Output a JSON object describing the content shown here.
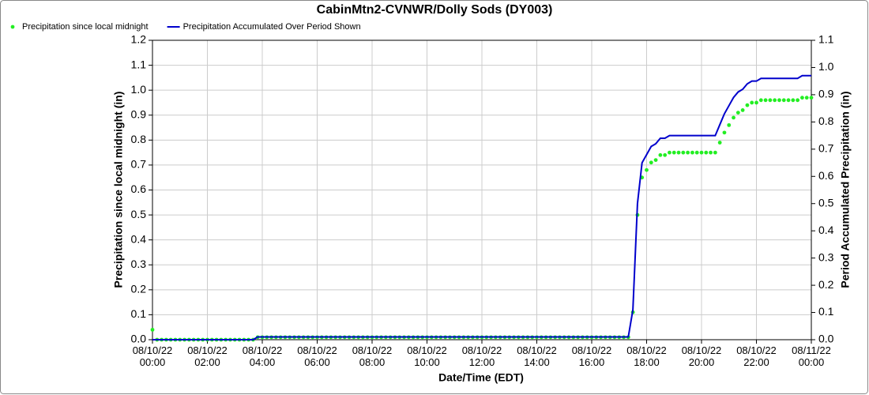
{
  "chart_data": {
    "type": "line",
    "title": "CabinMtn2-CVNWR/Dolly Sods (DY003)",
    "x_label": "Date/Time (EDT)",
    "y_label": "Precipitation since local midnight (in)",
    "y2_label": "Period Accumulated Precipitation (in)",
    "grid": true,
    "legend": "top-left",
    "xlim": [
      0,
      1440
    ],
    "xticks": [
      {
        "value": 0,
        "label": "08/10/22\n00:00"
      },
      {
        "value": 120,
        "label": "08/10/22\n02:00"
      },
      {
        "value": 240,
        "label": "08/10/22\n04:00"
      },
      {
        "value": 360,
        "label": "08/10/22\n06:00"
      },
      {
        "value": 480,
        "label": "08/10/22\n08:00"
      },
      {
        "value": 600,
        "label": "08/10/22\n10:00"
      },
      {
        "value": 720,
        "label": "08/10/22\n12:00"
      },
      {
        "value": 840,
        "label": "08/10/22\n14:00"
      },
      {
        "value": 960,
        "label": "08/10/22\n16:00"
      },
      {
        "value": 1080,
        "label": "08/10/22\n18:00"
      },
      {
        "value": 1200,
        "label": "08/10/22\n20:00"
      },
      {
        "value": 1320,
        "label": "08/10/22\n22:00"
      },
      {
        "value": 1440,
        "label": "08/11/22\n00:00"
      }
    ],
    "ylim": [
      0,
      1.2
    ],
    "yticks": [
      {
        "value": 0,
        "label": "0.0"
      },
      0.1,
      0.2,
      0.3,
      0.4,
      0.5,
      0.6,
      0.7,
      0.8,
      0.9,
      {
        "value": 1,
        "label": "1.0"
      },
      1.1,
      1.2
    ],
    "y2lim": [
      0,
      1.1
    ],
    "y2ticks": [
      {
        "value": 0,
        "label": "0.0"
      },
      0.1,
      0.2,
      0.3,
      0.4,
      0.5,
      0.6,
      0.7,
      0.8,
      0.9,
      {
        "value": 1,
        "label": "1.0"
      },
      1.1
    ],
    "x": [
      0,
      10,
      20,
      30,
      40,
      50,
      60,
      70,
      80,
      90,
      100,
      110,
      120,
      130,
      140,
      150,
      160,
      170,
      180,
      190,
      200,
      210,
      220,
      230,
      240,
      250,
      260,
      270,
      280,
      290,
      300,
      310,
      320,
      330,
      340,
      350,
      360,
      370,
      380,
      390,
      400,
      410,
      420,
      430,
      440,
      450,
      460,
      470,
      480,
      490,
      500,
      510,
      520,
      530,
      540,
      550,
      560,
      570,
      580,
      590,
      600,
      610,
      620,
      630,
      640,
      650,
      660,
      670,
      680,
      690,
      700,
      710,
      720,
      730,
      740,
      750,
      760,
      770,
      780,
      790,
      800,
      810,
      820,
      830,
      840,
      850,
      860,
      870,
      880,
      890,
      900,
      910,
      920,
      930,
      940,
      950,
      960,
      970,
      980,
      990,
      1000,
      1010,
      1020,
      1030,
      1040,
      1050,
      1060,
      1070,
      1080,
      1090,
      1100,
      1110,
      1120,
      1130,
      1140,
      1150,
      1160,
      1170,
      1180,
      1190,
      1200,
      1210,
      1220,
      1230,
      1240,
      1250,
      1260,
      1270,
      1280,
      1290,
      1300,
      1310,
      1320,
      1330,
      1340,
      1350,
      1360,
      1370,
      1380,
      1390,
      1400,
      1410,
      1420,
      1430,
      1440
    ],
    "series": [
      {
        "name": "Precipitation since local midnight",
        "color": "#22ee22",
        "style": "dots",
        "axis": "y",
        "values": [
          0.04,
          0,
          0,
          0,
          0,
          0,
          0,
          0,
          0,
          0,
          0,
          0,
          0,
          0,
          0,
          0,
          0,
          0,
          0,
          0,
          0,
          0,
          0,
          0.01,
          0.01,
          0.01,
          0.01,
          0.01,
          0.01,
          0.01,
          0.01,
          0.01,
          0.01,
          0.01,
          0.01,
          0.01,
          0.01,
          0.01,
          0.01,
          0.01,
          0.01,
          0.01,
          0.01,
          0.01,
          0.01,
          0.01,
          0.01,
          0.01,
          0.01,
          0.01,
          0.01,
          0.01,
          0.01,
          0.01,
          0.01,
          0.01,
          0.01,
          0.01,
          0.01,
          0.01,
          0.01,
          0.01,
          0.01,
          0.01,
          0.01,
          0.01,
          0.01,
          0.01,
          0.01,
          0.01,
          0.01,
          0.01,
          0.01,
          0.01,
          0.01,
          0.01,
          0.01,
          0.01,
          0.01,
          0.01,
          0.01,
          0.01,
          0.01,
          0.01,
          0.01,
          0.01,
          0.01,
          0.01,
          0.01,
          0.01,
          0.01,
          0.01,
          0.01,
          0.01,
          0.01,
          0.01,
          0.01,
          0.01,
          0.01,
          0.01,
          0.01,
          0.01,
          0.01,
          0.01,
          0.01,
          0.11,
          0.5,
          0.65,
          0.68,
          0.71,
          0.72,
          0.74,
          0.74,
          0.75,
          0.75,
          0.75,
          0.75,
          0.75,
          0.75,
          0.75,
          0.75,
          0.75,
          0.75,
          0.75,
          0.79,
          0.83,
          0.86,
          0.89,
          0.91,
          0.92,
          0.94,
          0.95,
          0.95,
          0.96,
          0.96,
          0.96,
          0.96,
          0.96,
          0.96,
          0.96,
          0.96,
          0.96,
          0.97,
          0.97,
          0.97
        ]
      },
      {
        "name": "Precipitation Accumulated Over Period Shown",
        "color": "#0000cc",
        "style": "line",
        "axis": "y2",
        "values": [
          0,
          0,
          0,
          0,
          0,
          0,
          0,
          0,
          0,
          0,
          0,
          0,
          0,
          0,
          0,
          0,
          0,
          0,
          0,
          0,
          0,
          0,
          0,
          0.01,
          0.01,
          0.01,
          0.01,
          0.01,
          0.01,
          0.01,
          0.01,
          0.01,
          0.01,
          0.01,
          0.01,
          0.01,
          0.01,
          0.01,
          0.01,
          0.01,
          0.01,
          0.01,
          0.01,
          0.01,
          0.01,
          0.01,
          0.01,
          0.01,
          0.01,
          0.01,
          0.01,
          0.01,
          0.01,
          0.01,
          0.01,
          0.01,
          0.01,
          0.01,
          0.01,
          0.01,
          0.01,
          0.01,
          0.01,
          0.01,
          0.01,
          0.01,
          0.01,
          0.01,
          0.01,
          0.01,
          0.01,
          0.01,
          0.01,
          0.01,
          0.01,
          0.01,
          0.01,
          0.01,
          0.01,
          0.01,
          0.01,
          0.01,
          0.01,
          0.01,
          0.01,
          0.01,
          0.01,
          0.01,
          0.01,
          0.01,
          0.01,
          0.01,
          0.01,
          0.01,
          0.01,
          0.01,
          0.01,
          0.01,
          0.01,
          0.01,
          0.01,
          0.01,
          0.01,
          0.01,
          0.01,
          0.11,
          0.5,
          0.65,
          0.68,
          0.71,
          0.72,
          0.74,
          0.74,
          0.75,
          0.75,
          0.75,
          0.75,
          0.75,
          0.75,
          0.75,
          0.75,
          0.75,
          0.75,
          0.75,
          0.79,
          0.83,
          0.86,
          0.89,
          0.91,
          0.92,
          0.94,
          0.95,
          0.95,
          0.96,
          0.96,
          0.96,
          0.96,
          0.96,
          0.96,
          0.96,
          0.96,
          0.96,
          0.97,
          0.97,
          0.97
        ]
      }
    ]
  }
}
